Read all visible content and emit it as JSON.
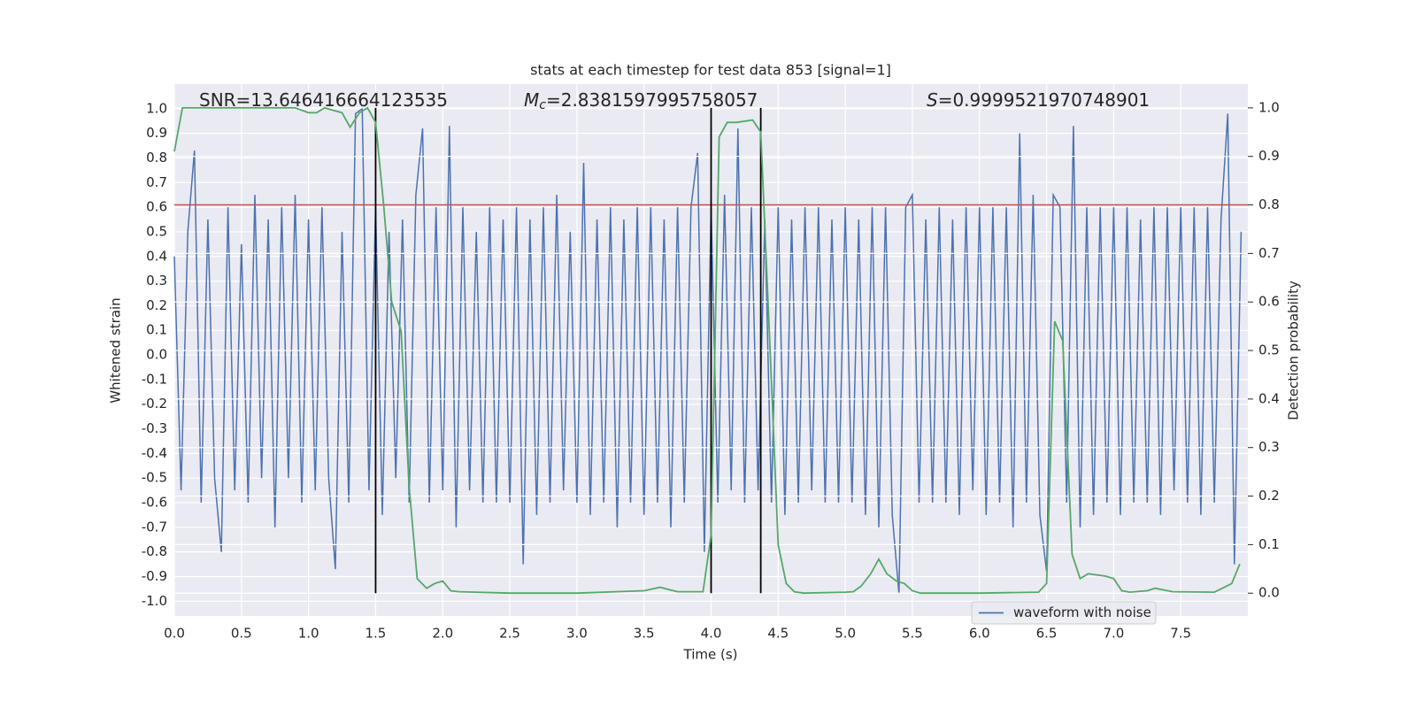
{
  "chart_data": {
    "type": "line",
    "title": "stats at each timestep for test data 853 [signal=1]",
    "xlabel": "Time (s)",
    "ylabel": "Whitened strain",
    "y2label": "Detection probability",
    "background": "#eaeaf2",
    "grid": true,
    "legend": "lower right",
    "xlim": [
      0,
      8
    ],
    "ylim": [
      -1.06,
      1.1
    ],
    "y2lim": [
      -0.047,
      1.049
    ],
    "xticks": [
      {
        "value": 0,
        "label": "0.0"
      },
      0.5,
      {
        "value": 1,
        "label": "1.0"
      },
      1.5,
      {
        "value": 2,
        "label": "2.0"
      },
      2.5,
      {
        "value": 3,
        "label": "3.0"
      },
      3.5,
      {
        "value": 4,
        "label": "4.0"
      },
      4.5,
      {
        "value": 5,
        "label": "5.0"
      },
      5.5,
      {
        "value": 6,
        "label": "6.0"
      },
      6.5,
      {
        "value": 7,
        "label": "7.0"
      },
      7.5
    ],
    "yticks": [
      {
        "value": -1,
        "label": "-1.0"
      },
      -0.9,
      -0.8,
      -0.7,
      -0.6,
      -0.5,
      -0.4,
      -0.3,
      -0.2,
      -0.1,
      {
        "value": 0,
        "label": "0.0"
      },
      0.1,
      0.2,
      0.3,
      0.4,
      0.5,
      0.6,
      0.7,
      0.8,
      0.9,
      {
        "value": 1,
        "label": "1.0"
      }
    ],
    "y2ticks": [
      {
        "value": 0,
        "label": "0.0"
      },
      0.1,
      0.2,
      0.3,
      0.4,
      0.5,
      0.6,
      0.7,
      0.8,
      0.9,
      {
        "value": 1,
        "label": "1.0"
      }
    ],
    "annotations": [
      {
        "text": "SNR=13.646416664123535"
      },
      {
        "symbol": "M",
        "subscript": "c",
        "text": "=2.8381597995758057"
      },
      {
        "symbol": "S",
        "text": "=0.9999521970748901"
      }
    ],
    "threshold": {
      "value": 0.8,
      "axis": "y2",
      "color": "#c44e52"
    },
    "vlines": {
      "x": [
        1.5,
        4.0,
        4.37
      ],
      "range": [
        0,
        1
      ],
      "axis": "y2",
      "color": "#000000"
    },
    "series": [
      {
        "name": "waveform with noise",
        "color": "#4c72b0",
        "x": [
          0,
          0.05,
          0.1,
          0.15,
          0.2,
          0.25,
          0.3,
          0.35,
          0.4,
          0.45,
          0.5,
          0.55,
          0.6,
          0.65,
          0.7,
          0.75,
          0.8,
          0.85,
          0.9,
          0.95,
          1,
          1.05,
          1.1,
          1.15,
          1.2,
          1.25,
          1.3,
          1.35,
          1.4,
          1.45,
          1.5,
          1.55,
          1.6,
          1.65,
          1.7,
          1.75,
          1.8,
          1.85,
          1.9,
          1.95,
          2,
          2.05,
          2.1,
          2.15,
          2.2,
          2.25,
          2.3,
          2.35,
          2.4,
          2.45,
          2.5,
          2.55,
          2.6,
          2.65,
          2.7,
          2.75,
          2.8,
          2.85,
          2.9,
          2.95,
          3,
          3.05,
          3.1,
          3.15,
          3.2,
          3.25,
          3.3,
          3.35,
          3.4,
          3.45,
          3.5,
          3.55,
          3.6,
          3.65,
          3.7,
          3.75,
          3.8,
          3.85,
          3.9,
          3.95,
          4,
          4.05,
          4.1,
          4.15,
          4.2,
          4.25,
          4.3,
          4.35,
          4.4,
          4.45,
          4.5,
          4.55,
          4.6,
          4.65,
          4.7,
          4.75,
          4.8,
          4.85,
          4.9,
          4.95,
          5,
          5.05,
          5.1,
          5.15,
          5.2,
          5.25,
          5.3,
          5.35,
          5.4,
          5.45,
          5.5,
          5.55,
          5.6,
          5.65,
          5.7,
          5.75,
          5.8,
          5.85,
          5.9,
          5.95,
          6,
          6.05,
          6.1,
          6.15,
          6.2,
          6.25,
          6.3,
          6.35,
          6.4,
          6.45,
          6.5,
          6.55,
          6.6,
          6.65,
          6.7,
          6.75,
          6.8,
          6.85,
          6.9,
          6.95,
          7,
          7.05,
          7.1,
          7.15,
          7.2,
          7.25,
          7.3,
          7.35,
          7.4,
          7.45,
          7.5,
          7.55,
          7.6,
          7.65,
          7.7,
          7.75,
          7.8,
          7.85,
          7.9,
          7.95
        ],
        "values": [
          0.4,
          -0.55,
          0.5,
          0.83,
          -0.6,
          0.55,
          -0.5,
          -0.8,
          0.6,
          -0.55,
          0.45,
          -0.6,
          0.65,
          -0.5,
          0.55,
          -0.7,
          0.6,
          -0.5,
          0.65,
          -0.6,
          0.55,
          -0.55,
          0.6,
          -0.5,
          -0.87,
          0.5,
          -0.6,
          0.98,
          1.0,
          -0.55,
          0.6,
          -0.65,
          0.5,
          -0.5,
          0.55,
          -0.6,
          0.65,
          0.92,
          -0.6,
          0.6,
          -0.55,
          0.93,
          -0.7,
          0.6,
          -0.55,
          0.5,
          -0.6,
          0.6,
          -0.6,
          0.55,
          -0.6,
          0.6,
          -0.85,
          0.55,
          -0.65,
          0.6,
          -0.6,
          0.65,
          -0.55,
          0.5,
          -0.6,
          0.78,
          -0.65,
          0.55,
          -0.6,
          0.6,
          -0.7,
          0.55,
          -0.6,
          0.6,
          -0.65,
          0.6,
          -0.6,
          0.55,
          -0.7,
          0.6,
          -0.6,
          0.6,
          0.82,
          -0.8,
          0.6,
          -0.6,
          0.65,
          -0.55,
          0.92,
          -0.6,
          0.6,
          -0.55,
          0.55,
          -0.6,
          0.6,
          -0.65,
          0.55,
          -0.6,
          0.6,
          -0.55,
          0.6,
          -0.6,
          0.55,
          -0.6,
          0.6,
          -0.6,
          0.55,
          -0.65,
          0.6,
          -0.7,
          0.6,
          -0.65,
          -0.97,
          0.6,
          0.65,
          -0.6,
          0.55,
          -0.6,
          0.6,
          -0.6,
          0.55,
          -0.65,
          0.6,
          -0.55,
          0.6,
          -0.65,
          0.6,
          -0.6,
          0.6,
          -0.7,
          0.9,
          -0.6,
          0.65,
          -0.65,
          -0.88,
          0.65,
          0.6,
          -0.6,
          0.93,
          -0.7,
          0.6,
          -0.65,
          0.6,
          -0.6,
          0.6,
          -0.65,
          0.6,
          -0.6,
          0.55,
          -0.6,
          0.6,
          -0.65,
          0.6,
          -0.55,
          0.6,
          -0.6,
          0.6,
          -0.65,
          0.6,
          -0.6,
          0.55,
          0.98,
          -0.85,
          0.5
        ]
      },
      {
        "color": "#55a868",
        "axis": "y2",
        "x": [
          0,
          0.06,
          0.2,
          0.5,
          0.9,
          1.0,
          1.06,
          1.12,
          1.25,
          1.31,
          1.38,
          1.44,
          1.5,
          1.56,
          1.62,
          1.69,
          1.75,
          1.81,
          1.88,
          1.94,
          2.0,
          2.06,
          2.12,
          2.5,
          3.0,
          3.5,
          3.62,
          3.69,
          3.75,
          3.94,
          4.0,
          4.06,
          4.12,
          4.19,
          4.31,
          4.37,
          4.44,
          4.5,
          4.56,
          4.62,
          4.69,
          5.0,
          5.06,
          5.12,
          5.19,
          5.25,
          5.31,
          5.38,
          5.44,
          5.5,
          5.56,
          6.0,
          6.44,
          6.5,
          6.56,
          6.62,
          6.69,
          6.75,
          6.81,
          6.94,
          7.0,
          7.06,
          7.12,
          7.25,
          7.31,
          7.44,
          7.75,
          7.81,
          7.88,
          7.94
        ],
        "values": [
          0.91,
          1.0,
          1.0,
          1.0,
          1.0,
          0.99,
          0.99,
          1.0,
          0.99,
          0.96,
          0.99,
          1.0,
          0.97,
          0.8,
          0.6,
          0.54,
          0.22,
          0.03,
          0.01,
          0.02,
          0.025,
          0.005,
          0.003,
          0.0,
          0.0,
          0.005,
          0.012,
          0.007,
          0.003,
          0.003,
          0.12,
          0.94,
          0.97,
          0.97,
          0.975,
          0.95,
          0.5,
          0.1,
          0.02,
          0.003,
          0.0,
          0.002,
          0.003,
          0.015,
          0.04,
          0.07,
          0.04,
          0.025,
          0.02,
          0.005,
          0.0,
          0.0,
          0.002,
          0.02,
          0.56,
          0.52,
          0.08,
          0.03,
          0.04,
          0.035,
          0.03,
          0.005,
          0.002,
          0.005,
          0.01,
          0.003,
          0.002,
          0.01,
          0.02,
          0.06
        ]
      }
    ]
  }
}
